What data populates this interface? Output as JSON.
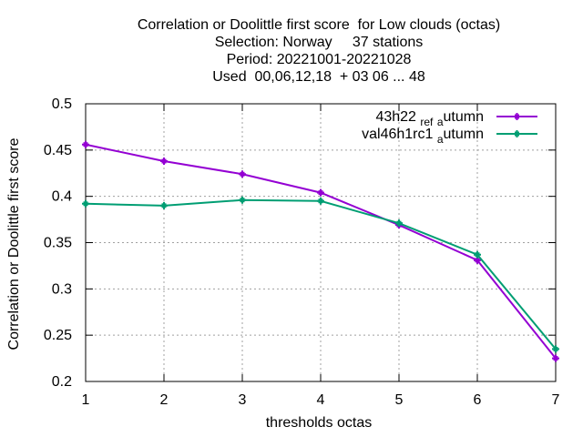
{
  "title_lines": [
    "Correlation or Doolittle first score  for Low clouds (octas)",
    "Selection: Norway     37 stations",
    "Period: 20221001-20221028",
    "Used  00,06,12,18  + 03 06 ... 48"
  ],
  "chart_data": {
    "type": "line",
    "xlabel": "thresholds octas",
    "ylabel": "Correlation or Doolittle first score",
    "xlim": [
      1,
      7
    ],
    "ylim": [
      0.2,
      0.5
    ],
    "x_ticks": [
      "1",
      "2",
      "3",
      "4",
      "5",
      "6",
      "7"
    ],
    "y_ticks": [
      "0.2",
      "0.25",
      "0.3",
      "0.35",
      "0.4",
      "0.45",
      "0.5"
    ],
    "grid": true,
    "legend_position": "top-right",
    "x": [
      1,
      2,
      3,
      4,
      5,
      6,
      7
    ],
    "series": [
      {
        "name": "43h22_ref_autumn",
        "legend_parts": [
          "43h22",
          "ref",
          "a",
          "utumn"
        ],
        "color": "#9400d3",
        "values": [
          0.456,
          0.438,
          0.424,
          0.404,
          0.369,
          0.331,
          0.225
        ]
      },
      {
        "name": "val46h1rc1_autumn",
        "legend_parts": [
          "val46h1rc1",
          "",
          "a",
          "utumn"
        ],
        "color": "#009e73",
        "values": [
          0.392,
          0.39,
          0.396,
          0.395,
          0.371,
          0.337,
          0.235
        ]
      }
    ]
  }
}
